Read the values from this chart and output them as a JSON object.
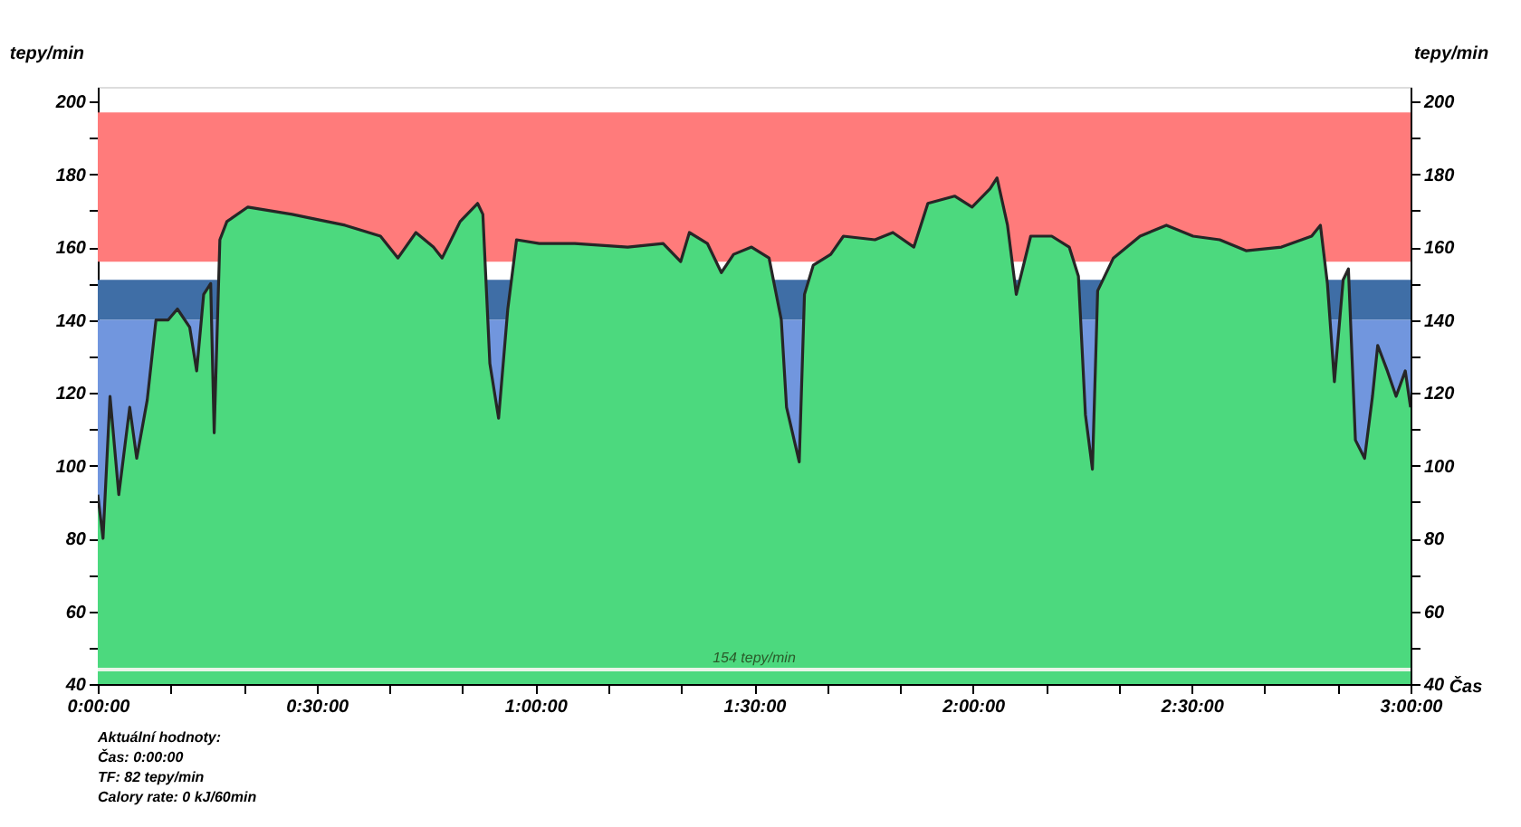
{
  "chart_data": {
    "type": "area",
    "xlabel": "Čas",
    "ylabel": "tepy/min",
    "y2label": "tepy/min",
    "x": [
      0,
      0.012,
      0.028,
      0.048,
      0.073,
      0.089,
      0.113,
      0.133,
      0.161,
      0.182,
      0.21,
      0.226,
      0.242,
      0.258,
      0.266,
      0.279,
      0.295,
      0.343,
      0.444,
      0.484,
      0.565,
      0.646,
      0.686,
      0.727,
      0.767,
      0.787,
      0.828,
      0.868,
      0.88,
      0.896,
      0.916,
      0.937,
      0.957,
      1.009,
      1.09,
      1.211,
      1.292,
      1.332,
      1.352,
      1.393,
      1.425,
      1.453,
      1.494,
      1.534,
      1.562,
      1.574,
      1.603,
      1.615,
      1.635,
      1.675,
      1.704,
      1.776,
      1.817,
      1.865,
      1.897,
      1.958,
      1.998,
      2.039,
      2.055,
      2.079,
      2.099,
      2.132,
      2.18,
      2.22,
      2.241,
      2.257,
      2.273,
      2.285,
      2.321,
      2.382,
      2.442,
      2.503,
      2.564,
      2.624,
      2.705,
      2.774,
      2.794,
      2.81,
      2.826,
      2.846,
      2.858,
      2.874,
      2.895,
      2.913,
      2.925,
      2.947,
      2.967,
      2.988,
      3.0
    ],
    "series": [
      {
        "color": "#4cd97e",
        "values": [
          92,
          80,
          119,
          92,
          116,
          102,
          118,
          140,
          140,
          143,
          138,
          126,
          147,
          150,
          109,
          162,
          167,
          171,
          169,
          168,
          166,
          163,
          157,
          164,
          160,
          157,
          167,
          172,
          169,
          128,
          113,
          143,
          162,
          161,
          161,
          160,
          161,
          156,
          164,
          161,
          153,
          158,
          160,
          157,
          140,
          116,
          101,
          147,
          155,
          158,
          163,
          162,
          164,
          160,
          172,
          174,
          171,
          176,
          179,
          166,
          147,
          163,
          163,
          160,
          152,
          114,
          99,
          148,
          157,
          163,
          166,
          163,
          162,
          159,
          160,
          163,
          166,
          150,
          123,
          151,
          154,
          107,
          102,
          119,
          133,
          126,
          119,
          126,
          116
        ]
      }
    ],
    "xlim": [
      0,
      3
    ],
    "xticks": [
      {
        "value": 0,
        "label": "0:00:00"
      },
      {
        "value": 0.16667,
        "label": null
      },
      {
        "value": 0.33333,
        "label": null
      },
      {
        "value": 0.5,
        "label": "0:30:00"
      },
      {
        "value": 0.66667,
        "label": null
      },
      {
        "value": 0.83333,
        "label": null
      },
      {
        "value": 1,
        "label": "1:00:00"
      },
      {
        "value": 1.16667,
        "label": null
      },
      {
        "value": 1.33333,
        "label": null
      },
      {
        "value": 1.5,
        "label": "1:30:00"
      },
      {
        "value": 1.66667,
        "label": null
      },
      {
        "value": 1.83333,
        "label": null
      },
      {
        "value": 2,
        "label": "2:00:00"
      },
      {
        "value": 2.16667,
        "label": null
      },
      {
        "value": 2.33333,
        "label": null
      },
      {
        "value": 2.5,
        "label": "2:30:00"
      },
      {
        "value": 2.66667,
        "label": null
      },
      {
        "value": 2.83333,
        "label": null
      },
      {
        "value": 3,
        "label": "3:00:00"
      }
    ],
    "ylim": [
      40,
      204
    ],
    "yticks": [
      40,
      {
        "value": 50,
        "label": null
      },
      60,
      {
        "value": 70,
        "label": null
      },
      80,
      {
        "value": 90,
        "label": null
      },
      100,
      {
        "value": 110,
        "label": null
      },
      120,
      {
        "value": 130,
        "label": null
      },
      140,
      {
        "value": 150,
        "label": null
      },
      160,
      {
        "value": 170,
        "label": null
      },
      180,
      {
        "value": 190,
        "label": null
      },
      200
    ],
    "y2lim": [
      40,
      204
    ],
    "y2ticks": [
      40,
      {
        "value": 50,
        "label": null
      },
      60,
      {
        "value": 70,
        "label": null
      },
      80,
      {
        "value": 90,
        "label": null
      },
      100,
      {
        "value": 110,
        "label": null
      },
      120,
      {
        "value": 130,
        "label": null
      },
      140,
      {
        "value": 150,
        "label": null
      },
      160,
      {
        "value": 170,
        "label": null
      },
      180,
      {
        "value": 190,
        "label": null
      },
      200
    ],
    "bands": [
      {
        "axis": "y",
        "from": 156,
        "to": 197,
        "color": "#ff7b7b"
      },
      {
        "axis": "y",
        "from": 140,
        "to": 151,
        "color": "#3f6ea6"
      },
      {
        "axis": "y",
        "from": 40,
        "to": 140,
        "color": "#7196de"
      }
    ],
    "ref_lines": [
      {
        "axis": "y",
        "value": 44,
        "label": "154 tepy/min",
        "color": "#e8f5e8"
      }
    ],
    "annotations": [
      "Aktuální hodnoty:",
      "Čas: 0:00:00",
      "TF: 82 tepy/min",
      "Calory rate: 0 kJ/60min"
    ],
    "grid": false
  }
}
